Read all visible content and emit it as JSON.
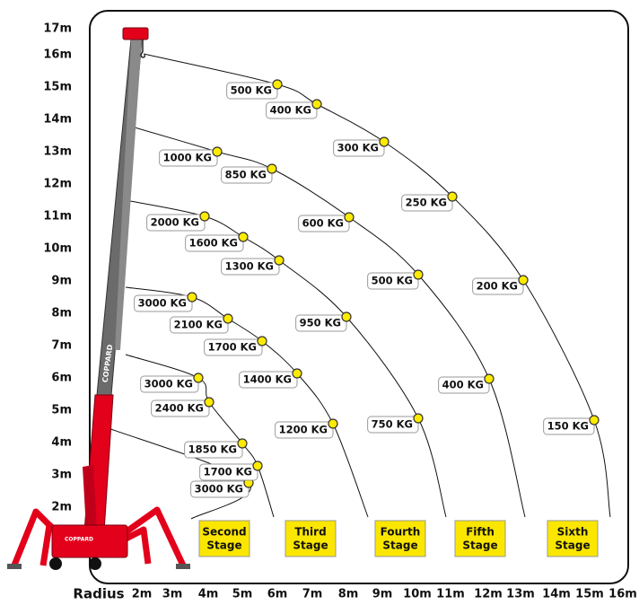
{
  "y_axis": {
    "labels": [
      "17m",
      "16m",
      "15m",
      "14m",
      "13m",
      "12m",
      "11m",
      "10m",
      "9m",
      "8m",
      "7m",
      "6m",
      "5m",
      "4m",
      "3m",
      "2m"
    ]
  },
  "x_axis": {
    "title": "Radius",
    "labels": [
      "2m",
      "3m",
      "4m",
      "5m",
      "6m",
      "7m",
      "8m",
      "9m",
      "10m",
      "11m",
      "12m",
      "13m",
      "14m",
      "15m",
      "16m"
    ]
  },
  "arcs": [
    {
      "loads": [
        "3000 KG"
      ]
    },
    {
      "loads": [
        "3000 KG",
        "2400 KG",
        "1850 KG",
        "1700 KG"
      ]
    },
    {
      "loads": [
        "3000 KG",
        "2100 KG",
        "1700 KG",
        "1400 KG",
        "1200 KG"
      ]
    },
    {
      "loads": [
        "2000 KG",
        "1600 KG",
        "1300 KG",
        "950 KG",
        "750 KG"
      ]
    },
    {
      "loads": [
        "1000 KG",
        "850 KG",
        "600 KG",
        "500 KG",
        "400 KG"
      ]
    },
    {
      "loads": [
        "500 KG",
        "400 KG",
        "300 KG",
        "250 KG",
        "200 KG",
        "150 KG"
      ]
    }
  ],
  "stages": [
    {
      "lines": [
        "Second",
        "Stage"
      ]
    },
    {
      "lines": [
        "Third",
        "Stage"
      ]
    },
    {
      "lines": [
        "Fourth",
        "Stage"
      ]
    },
    {
      "lines": [
        "Fifth",
        "Stage"
      ]
    },
    {
      "lines": [
        "Sixth",
        "Stage"
      ]
    }
  ],
  "crane": {
    "boom_label": "COPPARD",
    "base_label": "COPPARD"
  }
}
